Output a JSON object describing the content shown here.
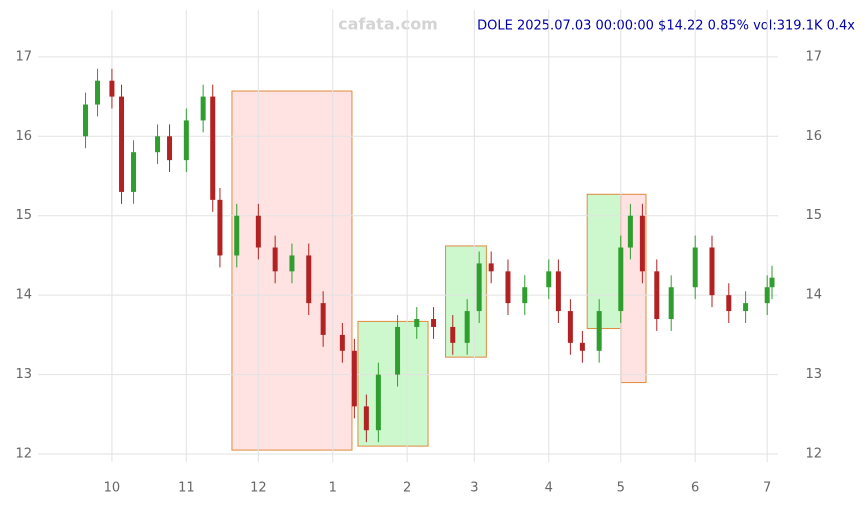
{
  "chart_data": {
    "type": "candlestick",
    "watermark": "cafata.com",
    "title": "DOLE 2025.07.03 00:00:00 $14.22 0.85% vol:319.1K 0.4x",
    "x": [
      19,
      24,
      30,
      34,
      39,
      49,
      54,
      61,
      68,
      72,
      75,
      82,
      91,
      98,
      105,
      112,
      118,
      126,
      131,
      136,
      141,
      149,
      157,
      164,
      172,
      178,
      183,
      188,
      195,
      202,
      212,
      216,
      221,
      226,
      233,
      242,
      246,
      251,
      257,
      263,
      273,
      280,
      287,
      294,
      303,
      305
    ],
    "open": [
      16.0,
      16.4,
      16.7,
      16.5,
      15.3,
      15.8,
      16.0,
      15.7,
      16.2,
      16.5,
      15.2,
      14.5,
      15.0,
      14.6,
      14.3,
      14.5,
      13.9,
      13.5,
      13.3,
      12.6,
      12.3,
      13.0,
      13.6,
      13.7,
      13.6,
      13.4,
      13.8,
      14.4,
      14.3,
      13.9,
      14.1,
      14.3,
      13.8,
      13.4,
      13.3,
      13.8,
      14.6,
      15.0,
      14.3,
      13.7,
      14.1,
      14.6,
      14.0,
      13.8,
      13.9,
      14.1
    ],
    "high": [
      16.55,
      16.85,
      16.85,
      16.65,
      15.95,
      16.15,
      16.15,
      16.35,
      16.65,
      16.65,
      15.35,
      15.15,
      15.15,
      14.75,
      14.65,
      14.65,
      14.05,
      13.65,
      13.45,
      12.75,
      13.15,
      13.75,
      13.85,
      13.85,
      13.75,
      13.95,
      14.55,
      14.55,
      14.45,
      14.25,
      14.45,
      14.45,
      13.95,
      13.55,
      13.95,
      14.75,
      15.15,
      15.15,
      14.45,
      14.25,
      14.75,
      14.75,
      14.15,
      14.05,
      14.25,
      14.37
    ],
    "low": [
      15.85,
      16.25,
      16.35,
      15.15,
      15.15,
      15.65,
      15.55,
      15.55,
      16.05,
      15.05,
      14.35,
      14.35,
      14.45,
      14.15,
      14.15,
      13.75,
      13.35,
      13.15,
      12.45,
      12.15,
      12.15,
      12.85,
      13.45,
      13.45,
      13.25,
      13.25,
      13.65,
      14.15,
      13.75,
      13.75,
      13.95,
      13.65,
      13.25,
      13.15,
      13.15,
      13.65,
      14.45,
      14.15,
      13.55,
      13.55,
      13.95,
      13.85,
      13.65,
      13.65,
      13.75,
      13.95
    ],
    "close": [
      16.4,
      16.7,
      16.5,
      15.3,
      15.8,
      16.0,
      15.7,
      16.2,
      16.5,
      15.2,
      14.5,
      15.0,
      14.6,
      14.3,
      14.5,
      13.9,
      13.5,
      13.3,
      12.6,
      12.3,
      13.0,
      13.6,
      13.7,
      13.6,
      13.4,
      13.8,
      14.4,
      14.3,
      13.9,
      14.1,
      14.3,
      13.8,
      13.4,
      13.3,
      13.8,
      14.6,
      15.0,
      14.3,
      13.7,
      14.1,
      14.6,
      14.0,
      13.8,
      13.9,
      14.1,
      14.22
    ],
    "up_color": "#2f9e2f",
    "down_color": "#b22222",
    "zones": [
      {
        "x": [
          80,
          130
        ],
        "y": [
          12.05,
          16.57
        ],
        "color": "#ffd6d6"
      },
      {
        "x": [
          132.5,
          161.7
        ],
        "y": [
          12.1,
          13.67
        ],
        "color": "#b8f5b8"
      },
      {
        "x": [
          169,
          186
        ],
        "y": [
          13.22,
          14.62
        ],
        "color": "#b8f5b8"
      },
      {
        "x": [
          228,
          242
        ],
        "y": [
          13.58,
          15.27
        ],
        "color": "#b8f5b8"
      },
      {
        "x": [
          242,
          252.5
        ],
        "y": [
          12.9,
          15.27
        ],
        "color": "#ffd6d6"
      }
    ],
    "xlim": [
      -0.8,
      307.5
    ],
    "ylim": [
      11.9,
      17.59
    ],
    "xticks": [
      {
        "value": 30,
        "label": "10"
      },
      {
        "value": 61,
        "label": "11"
      },
      {
        "value": 91,
        "label": "12"
      },
      {
        "value": 122,
        "label": "1"
      },
      {
        "value": 153,
        "label": "2"
      },
      {
        "value": 181,
        "label": "3"
      },
      {
        "value": 212,
        "label": "4"
      },
      {
        "value": 242,
        "label": "5"
      },
      {
        "value": 273,
        "label": "6"
      },
      {
        "value": 303,
        "label": "7"
      }
    ],
    "yticks": [
      12,
      13,
      14,
      15,
      16,
      17
    ],
    "grid": true
  }
}
